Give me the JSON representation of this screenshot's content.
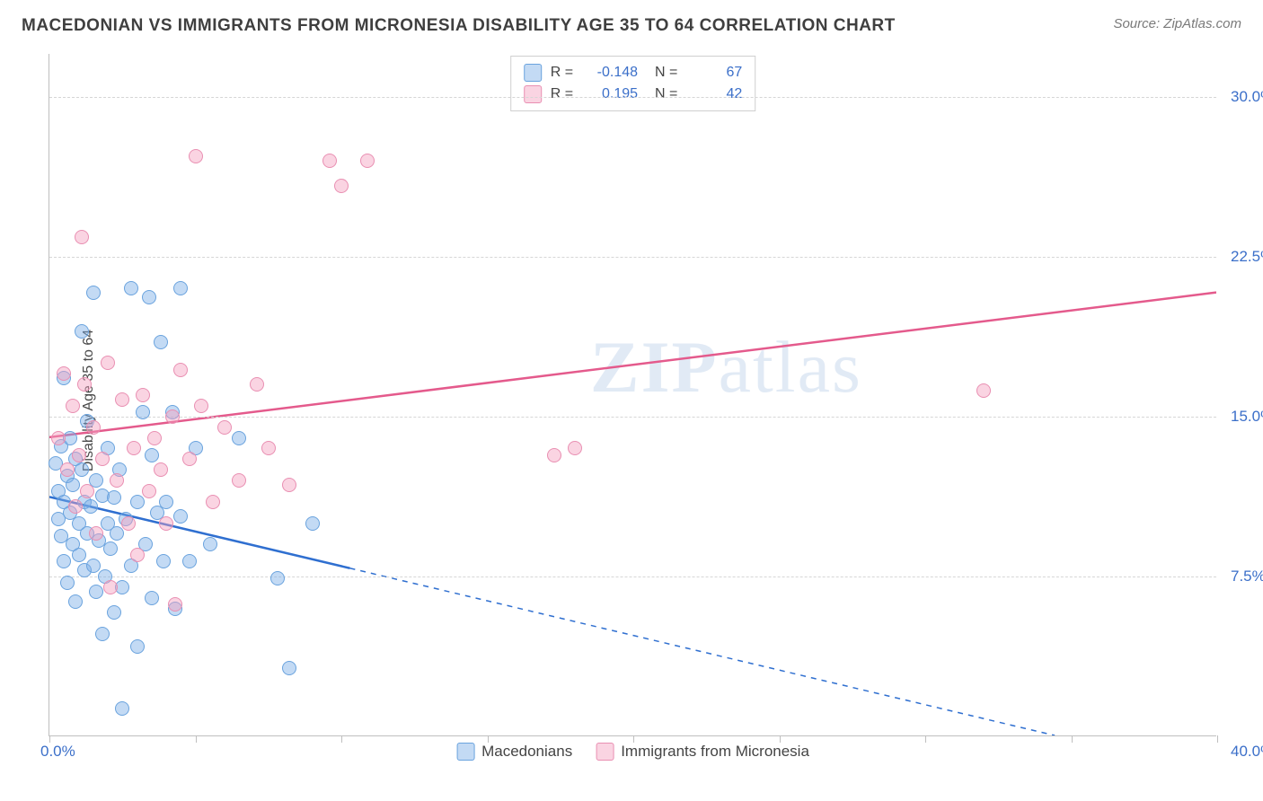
{
  "header": {
    "title": "MACEDONIAN VS IMMIGRANTS FROM MICRONESIA DISABILITY AGE 35 TO 64 CORRELATION CHART",
    "source": "Source: ZipAtlas.com"
  },
  "chart": {
    "type": "scatter",
    "ylabel": "Disability Age 35 to 64",
    "xlim": [
      0,
      40
    ],
    "ylim": [
      0,
      32
    ],
    "xlim_labels": [
      "0.0%",
      "40.0%"
    ],
    "ytick_values": [
      7.5,
      15.0,
      22.5,
      30.0
    ],
    "ytick_labels": [
      "7.5%",
      "15.0%",
      "22.5%",
      "30.0%"
    ],
    "xtick_values": [
      0,
      5,
      10,
      15,
      20,
      25,
      30,
      35,
      40
    ],
    "background_color": "#ffffff",
    "grid_color": "#d6d6d6",
    "axis_color": "#bfbfbf",
    "label_color": "#3b6fc9",
    "watermark": "ZIPatlas",
    "series": [
      {
        "name": "Macedonians",
        "color_fill": "rgba(122,172,230,0.45)",
        "color_stroke": "#6aa3de",
        "trend_color": "#2f6fd0",
        "R": "-0.148",
        "N": "67",
        "trend": {
          "y_at_x0": 11.2,
          "y_at_x40": -1.8,
          "solid_until_x": 10.3
        },
        "points": [
          [
            0.2,
            12.8
          ],
          [
            0.3,
            11.5
          ],
          [
            0.3,
            10.2
          ],
          [
            0.4,
            13.6
          ],
          [
            0.4,
            9.4
          ],
          [
            0.5,
            11.0
          ],
          [
            0.5,
            8.2
          ],
          [
            0.5,
            16.8
          ],
          [
            0.6,
            12.2
          ],
          [
            0.6,
            7.2
          ],
          [
            0.7,
            10.5
          ],
          [
            0.7,
            14.0
          ],
          [
            0.8,
            11.8
          ],
          [
            0.8,
            9.0
          ],
          [
            0.9,
            13.0
          ],
          [
            0.9,
            6.3
          ],
          [
            1.0,
            10.0
          ],
          [
            1.0,
            8.5
          ],
          [
            1.1,
            12.5
          ],
          [
            1.1,
            19.0
          ],
          [
            1.2,
            11.0
          ],
          [
            1.2,
            7.8
          ],
          [
            1.3,
            9.5
          ],
          [
            1.3,
            14.8
          ],
          [
            1.4,
            10.8
          ],
          [
            1.5,
            8.0
          ],
          [
            1.5,
            20.8
          ],
          [
            1.6,
            12.0
          ],
          [
            1.6,
            6.8
          ],
          [
            1.7,
            9.2
          ],
          [
            1.8,
            11.3
          ],
          [
            1.8,
            4.8
          ],
          [
            1.9,
            7.5
          ],
          [
            2.0,
            10.0
          ],
          [
            2.0,
            13.5
          ],
          [
            2.1,
            8.8
          ],
          [
            2.2,
            11.2
          ],
          [
            2.2,
            5.8
          ],
          [
            2.3,
            9.5
          ],
          [
            2.4,
            12.5
          ],
          [
            2.5,
            7.0
          ],
          [
            2.5,
            1.3
          ],
          [
            2.6,
            10.2
          ],
          [
            2.8,
            8.0
          ],
          [
            2.8,
            21.0
          ],
          [
            3.0,
            11.0
          ],
          [
            3.0,
            4.2
          ],
          [
            3.2,
            15.2
          ],
          [
            3.3,
            9.0
          ],
          [
            3.4,
            20.6
          ],
          [
            3.5,
            6.5
          ],
          [
            3.5,
            13.2
          ],
          [
            3.7,
            10.5
          ],
          [
            3.8,
            18.5
          ],
          [
            3.9,
            8.2
          ],
          [
            4.0,
            11.0
          ],
          [
            4.2,
            15.2
          ],
          [
            4.3,
            6.0
          ],
          [
            4.5,
            10.3
          ],
          [
            4.5,
            21.0
          ],
          [
            4.8,
            8.2
          ],
          [
            5.0,
            13.5
          ],
          [
            5.5,
            9.0
          ],
          [
            6.5,
            14.0
          ],
          [
            7.8,
            7.4
          ],
          [
            8.2,
            3.2
          ],
          [
            9.0,
            10.0
          ]
        ]
      },
      {
        "name": "Immigrants from Micronesia",
        "color_fill": "rgba(244,160,190,0.45)",
        "color_stroke": "#e98fb2",
        "trend_color": "#e45a8c",
        "R": "0.195",
        "N": "42",
        "trend": {
          "y_at_x0": 14.0,
          "y_at_x40": 20.8,
          "solid_until_x": 40
        },
        "points": [
          [
            0.3,
            14.0
          ],
          [
            0.5,
            17.0
          ],
          [
            0.6,
            12.5
          ],
          [
            0.8,
            15.5
          ],
          [
            0.9,
            10.8
          ],
          [
            1.0,
            13.2
          ],
          [
            1.1,
            23.4
          ],
          [
            1.2,
            16.5
          ],
          [
            1.3,
            11.5
          ],
          [
            1.5,
            14.5
          ],
          [
            1.6,
            9.5
          ],
          [
            1.8,
            13.0
          ],
          [
            2.0,
            17.5
          ],
          [
            2.1,
            7.0
          ],
          [
            2.3,
            12.0
          ],
          [
            2.5,
            15.8
          ],
          [
            2.7,
            10.0
          ],
          [
            2.9,
            13.5
          ],
          [
            3.0,
            8.5
          ],
          [
            3.2,
            16.0
          ],
          [
            3.4,
            11.5
          ],
          [
            3.6,
            14.0
          ],
          [
            3.8,
            12.5
          ],
          [
            4.0,
            10.0
          ],
          [
            4.2,
            15.0
          ],
          [
            4.3,
            6.2
          ],
          [
            4.5,
            17.2
          ],
          [
            4.8,
            13.0
          ],
          [
            5.0,
            27.2
          ],
          [
            5.2,
            15.5
          ],
          [
            5.6,
            11.0
          ],
          [
            6.0,
            14.5
          ],
          [
            6.5,
            12.0
          ],
          [
            7.1,
            16.5
          ],
          [
            7.5,
            13.5
          ],
          [
            8.2,
            11.8
          ],
          [
            9.6,
            27.0
          ],
          [
            10.0,
            25.8
          ],
          [
            10.9,
            27.0
          ],
          [
            17.3,
            13.2
          ],
          [
            18.0,
            13.5
          ],
          [
            32.0,
            16.2
          ]
        ]
      }
    ],
    "legend": {
      "items": [
        "Macedonians",
        "Immigrants from Micronesia"
      ]
    }
  }
}
